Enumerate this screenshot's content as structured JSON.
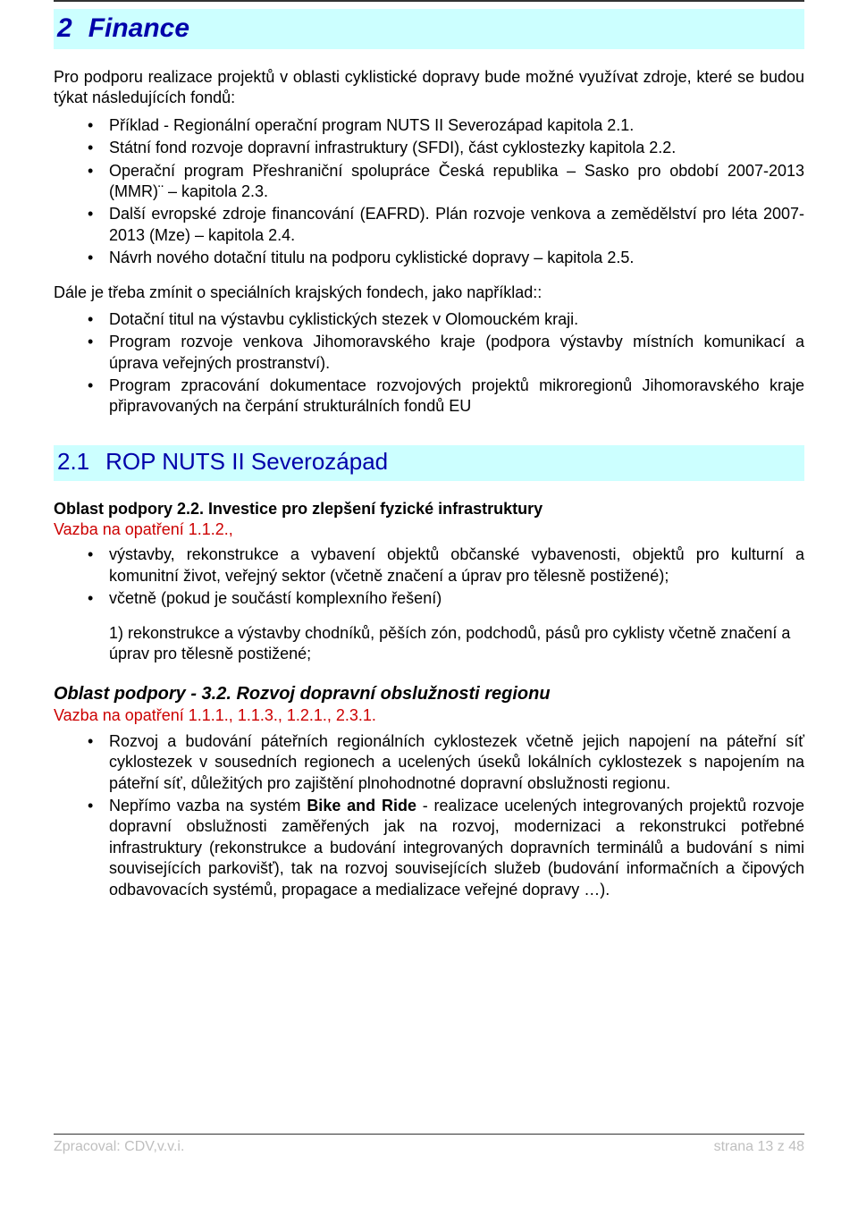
{
  "colors": {
    "heading_bg": "#ccffff",
    "heading_text": "#0000aa",
    "link_red": "#cc0000",
    "footer_grey": "#bfbfbf",
    "body_text": "#000000",
    "rule": "#333333"
  },
  "h1": {
    "num": "2",
    "title": "Finance"
  },
  "intro": "Pro podporu realizace projektů v oblasti cyklistické dopravy bude možné využívat zdroje, které se budou týkat následujících fondů:",
  "list1": [
    "Příklad - Regionální operační program NUTS II Severozápad kapitola 2.1.",
    "Státní fond rozvoje dopravní infrastruktury (SFDI), část cyklostezky kapitola 2.2.",
    "Operační program Přeshraniční spolupráce Česká republika – Sasko pro období 2007-2013 (MMR)¨ – kapitola 2.3.",
    "Další evropské zdroje financování (EAFRD). Plán rozvoje venkova a zemědělství pro léta 2007-2013 (Mze) – kapitola 2.4.",
    "Návrh nového dotační titulu na podporu cyklistické dopravy – kapitola 2.5."
  ],
  "para2": "Dále je třeba zmínit o speciálních krajských fondech, jako například::",
  "list2": [
    "Dotační titul na výstavbu cyklistických stezek v Olomouckém kraji.",
    "Program rozvoje venkova Jihomoravského kraje (podpora výstavby místních komunikací a úprava veřejných prostranství).",
    "Program zpracování dokumentace rozvojových projektů mikroregionů Jihomoravského kraje připravovaných na čerpání strukturálních fondů EU"
  ],
  "h2": {
    "num": "2.1",
    "title": "ROP  NUTS II Severozápad"
  },
  "section_a": {
    "title": "Oblast podpory 2.2. Investice pro zlepšení fyzické infrastruktury",
    "vazba": "Vazba na opatření 1.1.2.,",
    "items": [
      "výstavby, rekonstrukce a vybavení objektů občanské vybavenosti, objektů pro kulturní a komunitní život, veřejný sektor (včetně značení a úprav pro tělesně postižené);",
      "včetně (pokud je součástí komplexního řešení)"
    ],
    "subtext": "1) rekonstrukce a výstavby chodníků, pěších zón, podchodů, pásů pro cyklisty včetně značení a úprav pro tělesně postižené;"
  },
  "section_b": {
    "title": "Oblast podpory - 3.2. Rozvoj dopravní obslužnosti regionu",
    "vazba": "Vazba na opatření 1.1.1., 1.1.3., 1.2.1., 2.3.1.",
    "items": [
      "Rozvoj a budování páteřních regionálních cyklostezek včetně jejich napojení na páteřní síť cyklostezek v sousedních regionech a ucelených úseků lokálních cyklostezek s napojením na páteřní síť, důležitých pro zajištění plnohodnotné dopravní obslužnosti regionu."
    ],
    "item2_pre": "Nepřímo vazba na systém ",
    "item2_bold": "Bike and Ride",
    "item2_post": " - realizace ucelených integrovaných projektů rozvoje dopravní obslužnosti  zaměřených jak na rozvoj, modernizaci a rekonstrukci potřebné infrastruktury (rekonstrukce a budování integrovaných dopravních terminálů a budování s nimi souvisejících parkovišť), tak na rozvoj souvisejících služeb (budování informačních a čipových odbavovacích systémů, propagace a medializace veřejné dopravy …)."
  },
  "footer": {
    "left": "Zpracoval: CDV,v.v.i.",
    "right": "strana 13 z 48"
  }
}
